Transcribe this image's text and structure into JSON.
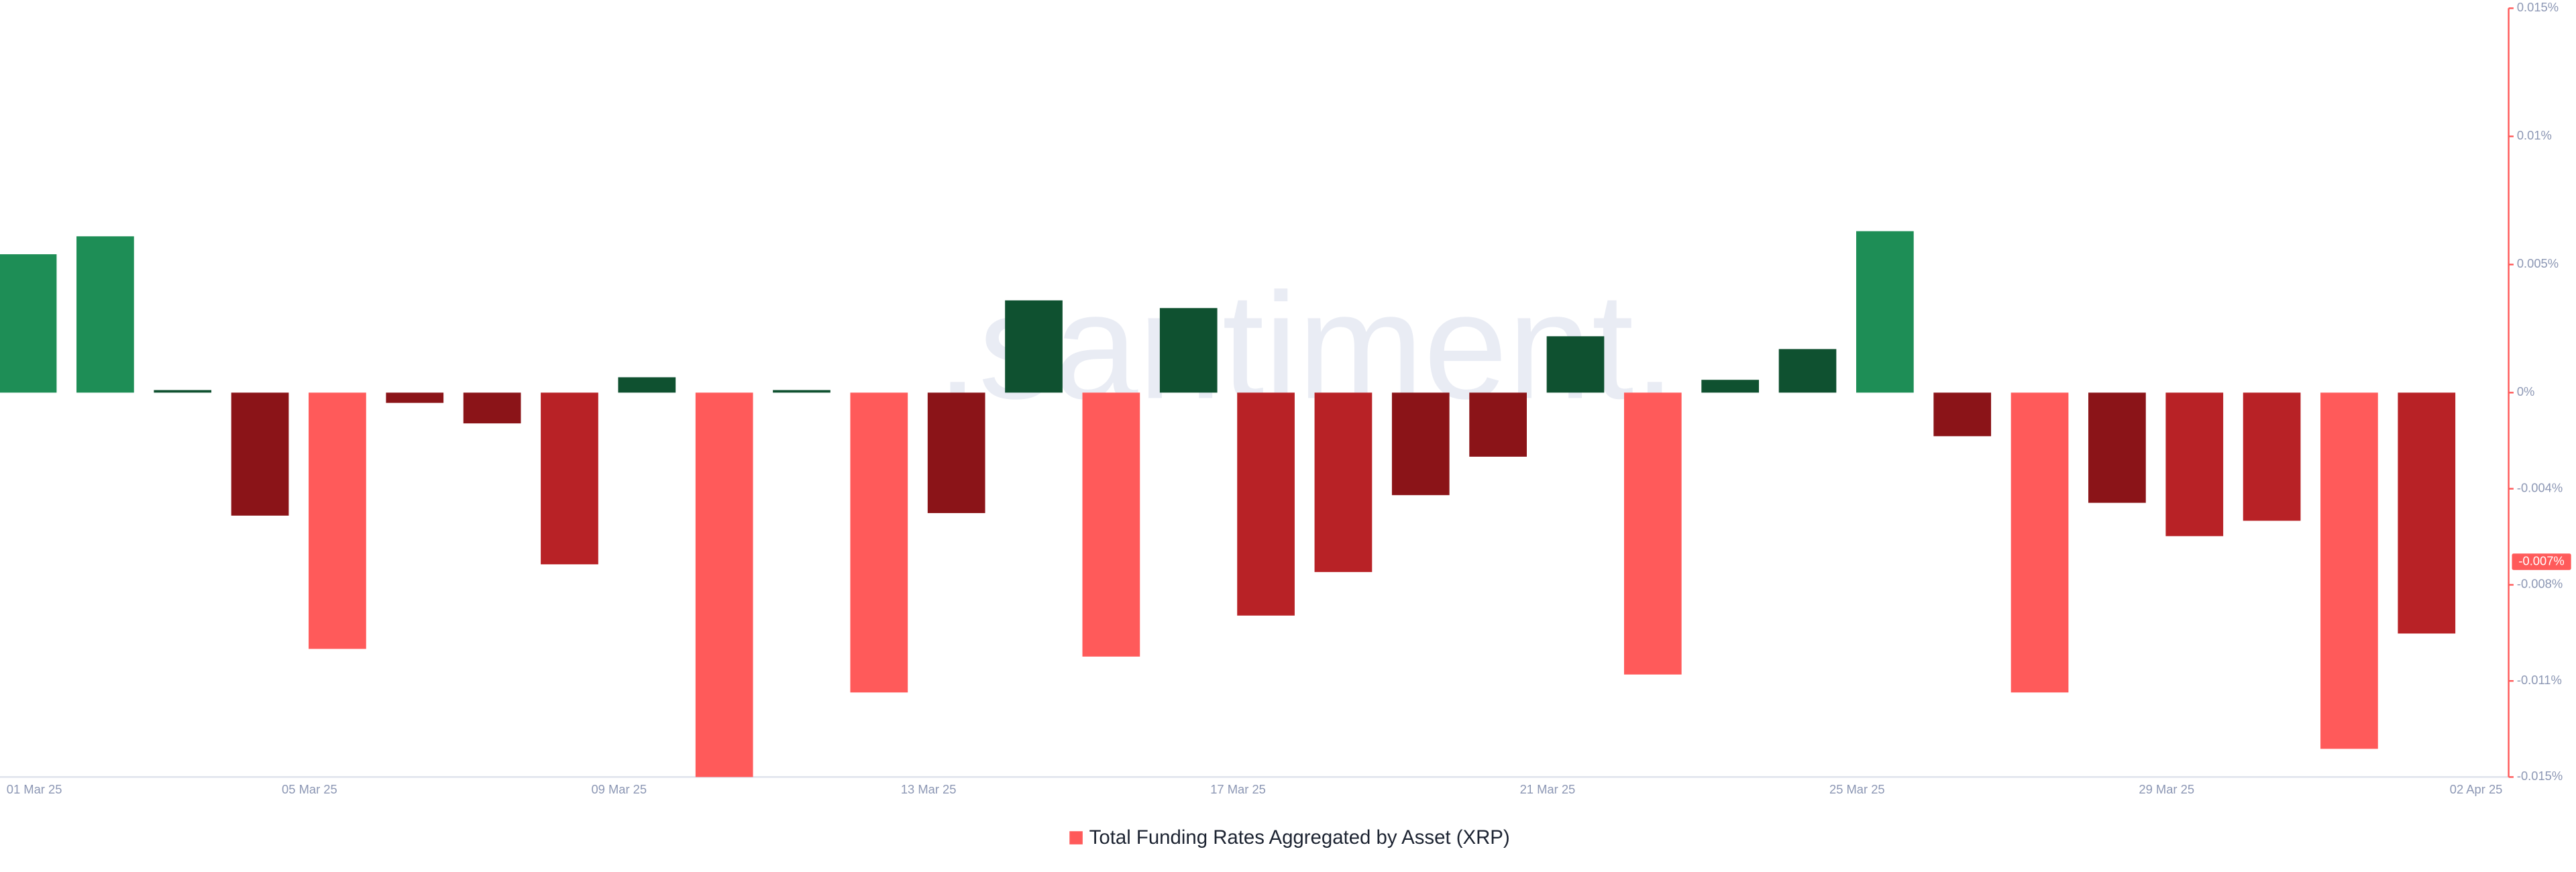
{
  "chart_data": {
    "type": "bar",
    "watermark": ".santiment.",
    "categories": [
      "01 Mar 25",
      null,
      null,
      null,
      "05 Mar 25",
      null,
      null,
      null,
      "09 Mar 25",
      null,
      null,
      null,
      "13 Mar 25",
      null,
      null,
      null,
      "17 Mar 25",
      null,
      null,
      null,
      "21 Mar 25",
      null,
      null,
      null,
      "25 Mar 25",
      null,
      null,
      null,
      "29 Mar 25",
      null,
      null,
      null,
      "02 Apr 25"
    ],
    "series": [
      {
        "name": "Total Funding Rates Aggregated by Asset (XRP)",
        "color": "#ff5a5a",
        "values": [
          0.0054,
          0.0061,
          0.0001,
          -0.0048,
          -0.01,
          -0.0004,
          -0.0012,
          -0.0067,
          0.0006,
          -0.015,
          0.0001,
          -0.0117,
          -0.0047,
          0.0036,
          -0.0103,
          0.0033,
          -0.0087,
          -0.007,
          -0.004,
          -0.0025,
          0.0022,
          -0.011,
          0.0005,
          0.0017,
          0.0063,
          -0.0017,
          -0.0117,
          -0.0043,
          -0.0056,
          -0.005,
          -0.0139,
          -0.0094,
          null
        ],
        "colors": [
          "#1e8e56",
          "#1e8e56",
          "#0f5130",
          "#8b1418",
          "#ff5a5a",
          "#8b1418",
          "#8b1418",
          "#b82226",
          "#0f5130",
          "#ff5a5a",
          "#0f5130",
          "#ff5a5a",
          "#8b1418",
          "#0f5130",
          "#ff5a5a",
          "#0f5130",
          "#b82226",
          "#b82226",
          "#8b1418",
          "#8b1418",
          "#0f5130",
          "#ff5a5a",
          "#0f5130",
          "#0f5130",
          "#1e8e56",
          "#8b1418",
          "#ff5a5a",
          "#8b1418",
          "#b82226",
          "#b82226",
          "#ff5a5a",
          "#b82226",
          null
        ]
      }
    ],
    "ylim": [
      -0.015,
      0.015
    ],
    "yticks": [
      {
        "value": 0.015,
        "label": "0.015%"
      },
      {
        "value": 0.01,
        "label": "0.01%"
      },
      {
        "value": 0.005,
        "label": "0.005%"
      },
      {
        "value": 0,
        "label": "0%"
      },
      {
        "value": -0.00375,
        "label": "-0.004%"
      },
      {
        "value": -0.0075,
        "label": "-0.008%"
      },
      {
        "value": -0.01125,
        "label": "-0.011%"
      },
      {
        "value": -0.015,
        "label": "-0.015%"
      }
    ],
    "current_value": {
      "value": -0.0066,
      "label": "-0.007%"
    }
  }
}
